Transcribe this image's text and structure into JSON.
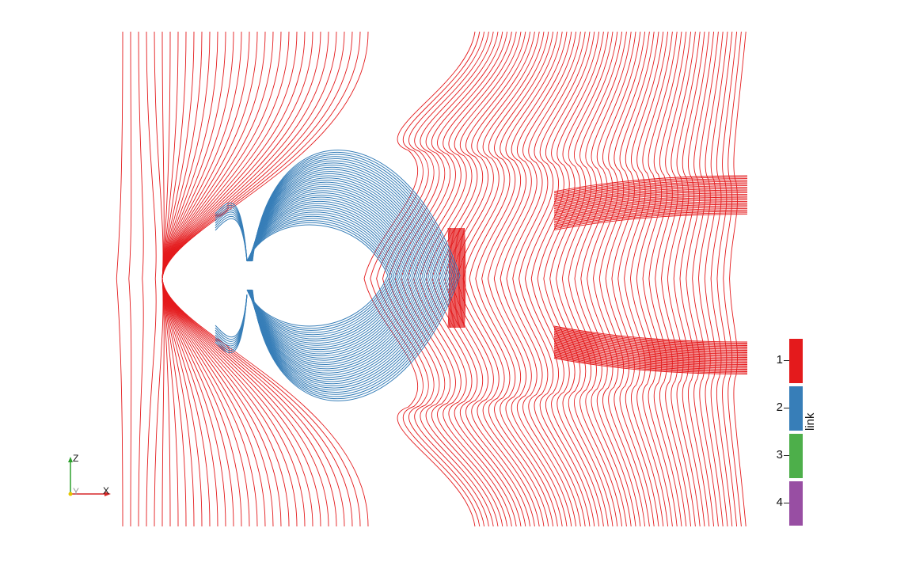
{
  "legend": {
    "title": "link",
    "entries": [
      {
        "label": "1",
        "color": "#e41a1c"
      },
      {
        "label": "2",
        "color": "#377eb8"
      },
      {
        "label": "3",
        "color": "#4daf4a"
      },
      {
        "label": "4",
        "color": "#984ea3"
      }
    ]
  },
  "axes": {
    "x": "X",
    "y": "Y",
    "z": "Z"
  },
  "colors": {
    "link1": "#e41a1c",
    "link2": "#377eb8",
    "axis_x": "#d62728",
    "axis_y": "#e6c600",
    "axis_z": "#2ca02c"
  }
}
